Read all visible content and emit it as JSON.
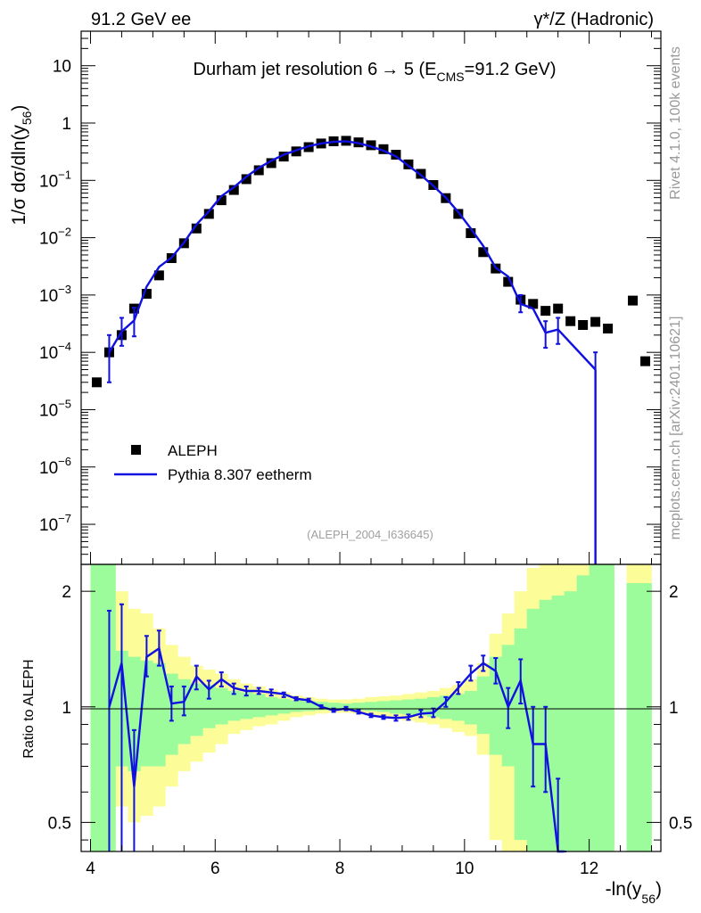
{
  "header": {
    "left": "91.2 GeV ee",
    "right": "γ*/Z (Hadronic)"
  },
  "side_labels": {
    "rivet": "Rivet 4.1.0,  100k events",
    "mcplots": "mcplots.cern.ch [arXiv:2401.10621]"
  },
  "chart_data": [
    {
      "type": "scatter",
      "panel": "main",
      "title": "Durham jet resolution 6 → 5 (E_CMS=91.2 GeV)",
      "title_main": "Durham jet resolution 6",
      "title_arrow": "→",
      "title_rest": " 5 (E",
      "title_sub": "CMS",
      "title_end": "=91.2 GeV)",
      "ylabel_prefix": "1/σ  dσ/dln(y",
      "ylabel_sub": "56",
      "ylabel_suffix": ")",
      "xlabel_prefix": "-ln(y",
      "xlabel_sub": "56",
      "xlabel_suffix": ")",
      "xscale": "linear",
      "yscale": "log",
      "xlim": [
        3.85,
        13.15
      ],
      "ylim": [
        2e-08,
        40
      ],
      "yticks": [
        {
          "v": 1e-07,
          "base": "10",
          "exp": "−7"
        },
        {
          "v": 1e-06,
          "base": "10",
          "exp": "−6"
        },
        {
          "v": 1e-05,
          "base": "10",
          "exp": "−5"
        },
        {
          "v": 0.0001,
          "base": "10",
          "exp": "−4"
        },
        {
          "v": 0.001,
          "base": "10",
          "exp": "−3"
        },
        {
          "v": 0.01,
          "base": "10",
          "exp": "−2"
        },
        {
          "v": 0.1,
          "base": "10",
          "exp": "−1"
        },
        {
          "v": 1,
          "base": "1",
          "exp": ""
        },
        {
          "v": 10,
          "base": "10",
          "exp": ""
        }
      ],
      "watermark": "(ALEPH_2004_I636645)",
      "legend_position": "lower-left",
      "series": [
        {
          "name": "ALEPH",
          "style": "square-marker",
          "color": "#000000",
          "points": [
            [
              4.1,
              3e-05
            ],
            [
              4.3,
              0.0001
            ],
            [
              4.5,
              0.0002
            ],
            [
              4.7,
              0.00058
            ],
            [
              4.9,
              0.00105
            ],
            [
              5.1,
              0.0022
            ],
            [
              5.3,
              0.0044
            ],
            [
              5.5,
              0.008
            ],
            [
              5.7,
              0.0145
            ],
            [
              5.9,
              0.026
            ],
            [
              6.1,
              0.045
            ],
            [
              6.3,
              0.068
            ],
            [
              6.5,
              0.105
            ],
            [
              6.7,
              0.15
            ],
            [
              6.9,
              0.2
            ],
            [
              7.1,
              0.26
            ],
            [
              7.3,
              0.32
            ],
            [
              7.5,
              0.38
            ],
            [
              7.7,
              0.44
            ],
            [
              7.9,
              0.48
            ],
            [
              8.1,
              0.49
            ],
            [
              8.3,
              0.46
            ],
            [
              8.5,
              0.41
            ],
            [
              8.7,
              0.35
            ],
            [
              8.9,
              0.28
            ],
            [
              9.1,
              0.19
            ],
            [
              9.3,
              0.13
            ],
            [
              9.5,
              0.083
            ],
            [
              9.7,
              0.049
            ],
            [
              9.9,
              0.026
            ],
            [
              10.1,
              0.012
            ],
            [
              10.3,
              0.0056
            ],
            [
              10.5,
              0.0029
            ],
            [
              10.7,
              0.0017
            ],
            [
              10.9,
              0.00083
            ],
            [
              11.1,
              0.0007
            ],
            [
              11.3,
              0.00053
            ],
            [
              11.5,
              0.00058
            ],
            [
              11.7,
              0.00035
            ],
            [
              11.9,
              0.0003
            ],
            [
              12.1,
              0.00034
            ],
            [
              12.3,
              0.00026
            ],
            [
              12.7,
              0.0008
            ],
            [
              12.9,
              7e-05
            ]
          ]
        },
        {
          "name": "Pythia 8.307 eetherm",
          "style": "line",
          "color": "#1010e0",
          "points": [
            [
              4.3,
              0.0001
            ],
            [
              4.5,
              0.00023
            ],
            [
              4.7,
              0.00036
            ],
            [
              4.9,
              0.0014
            ],
            [
              5.1,
              0.0031
            ],
            [
              5.3,
              0.0045
            ],
            [
              5.5,
              0.0082
            ],
            [
              5.7,
              0.017
            ],
            [
              5.9,
              0.029
            ],
            [
              6.1,
              0.053
            ],
            [
              6.3,
              0.076
            ],
            [
              6.5,
              0.116
            ],
            [
              6.7,
              0.165
            ],
            [
              6.9,
              0.22
            ],
            [
              7.1,
              0.28
            ],
            [
              7.3,
              0.334
            ],
            [
              7.5,
              0.395
            ],
            [
              7.7,
              0.44
            ],
            [
              7.9,
              0.47
            ],
            [
              8.1,
              0.48
            ],
            [
              8.3,
              0.445
            ],
            [
              8.5,
              0.39
            ],
            [
              8.7,
              0.33
            ],
            [
              8.9,
              0.262
            ],
            [
              9.1,
              0.18
            ],
            [
              9.3,
              0.124
            ],
            [
              9.5,
              0.08
            ],
            [
              9.7,
              0.05
            ],
            [
              9.9,
              0.028
            ],
            [
              10.1,
              0.0145
            ],
            [
              10.3,
              0.0072
            ],
            [
              10.5,
              0.003
            ],
            [
              10.7,
              0.0021
            ],
            [
              10.9,
              0.0007
            ],
            [
              11.1,
              0.00058
            ],
            [
              11.3,
              0.00022
            ],
            [
              11.5,
              0.00025
            ],
            [
              12.1,
              5e-05
            ]
          ],
          "error_bars": [
            [
              4.3,
              3e-05,
              0.0002
            ],
            [
              4.5,
              0.00013,
              0.0004
            ],
            [
              4.7,
              0.00019,
              0.0006
            ],
            [
              10.9,
              0.0005,
              0.001
            ],
            [
              11.3,
              0.00012,
              0.00035
            ],
            [
              11.5,
              0.00014,
              0.0004
            ],
            [
              12.1,
              1e-09,
              0.0001
            ]
          ]
        }
      ]
    },
    {
      "type": "scatter",
      "panel": "ratio",
      "ylabel": "Ratio to ALEPH",
      "xlim": [
        3.85,
        13.15
      ],
      "ylim": [
        0.42,
        2.35
      ],
      "yscale": "log",
      "xticks": [
        {
          "v": 4,
          "label": "4"
        },
        {
          "v": 6,
          "label": "6"
        },
        {
          "v": 8,
          "label": "8"
        },
        {
          "v": 10,
          "label": "10"
        },
        {
          "v": 12,
          "label": "12"
        }
      ],
      "yticks": [
        {
          "v": 0.5,
          "label": "0.5"
        },
        {
          "v": 1,
          "label": "1"
        },
        {
          "v": 2,
          "label": "2"
        }
      ],
      "bands": {
        "bin_edges": [
          4.0,
          4.2,
          4.4,
          4.6,
          4.8,
          5.0,
          5.2,
          5.4,
          5.6,
          5.8,
          6.0,
          6.2,
          6.4,
          6.6,
          6.8,
          7.0,
          7.2,
          7.4,
          7.6,
          7.8,
          8.0,
          8.2,
          8.4,
          8.6,
          8.8,
          9.0,
          9.2,
          9.4,
          9.6,
          9.8,
          10.0,
          10.2,
          10.4,
          10.6,
          10.8,
          11.0,
          11.2,
          11.4,
          11.6,
          11.8,
          12.0,
          12.2,
          12.4,
          12.6,
          12.8,
          13.0
        ],
        "stat_color": "#9cfc9c",
        "total_color": "#fcfc98",
        "stat": [
          [
            0.4,
            2.4
          ],
          [
            0.4,
            2.4
          ],
          [
            0.7,
            1.4
          ],
          [
            0.68,
            1.35
          ],
          [
            0.7,
            1.32
          ],
          [
            0.7,
            1.3
          ],
          [
            0.75,
            1.22
          ],
          [
            0.8,
            1.18
          ],
          [
            0.84,
            1.15
          ],
          [
            0.88,
            1.14
          ],
          [
            0.9,
            1.12
          ],
          [
            0.92,
            1.1
          ],
          [
            0.93,
            1.09
          ],
          [
            0.94,
            1.08
          ],
          [
            0.95,
            1.06
          ],
          [
            0.96,
            1.05
          ],
          [
            0.97,
            1.04
          ],
          [
            0.975,
            1.035
          ],
          [
            0.98,
            1.03
          ],
          [
            0.985,
            1.025
          ],
          [
            0.985,
            1.02
          ],
          [
            0.98,
            1.025
          ],
          [
            0.975,
            1.03
          ],
          [
            0.97,
            1.035
          ],
          [
            0.96,
            1.04
          ],
          [
            0.955,
            1.045
          ],
          [
            0.95,
            1.05
          ],
          [
            0.94,
            1.06
          ],
          [
            0.93,
            1.07
          ],
          [
            0.92,
            1.08
          ],
          [
            0.9,
            1.1
          ],
          [
            0.85,
            1.2
          ],
          [
            0.75,
            1.35
          ],
          [
            0.7,
            1.45
          ],
          [
            0.45,
            1.6
          ],
          [
            0.4,
            1.8
          ],
          [
            0.4,
            1.9
          ],
          [
            0.4,
            1.95
          ],
          [
            0.4,
            2.0
          ],
          [
            0.4,
            2.2
          ],
          [
            0.4,
            2.4
          ],
          [
            0.4,
            2.4
          ],
          null,
          [
            0.4,
            2.1
          ],
          [
            0.4,
            2.1
          ]
        ],
        "total": [
          [
            0.4,
            2.4
          ],
          [
            0.4,
            2.4
          ],
          [
            0.55,
            2.0
          ],
          [
            0.5,
            1.8
          ],
          [
            0.52,
            1.75
          ],
          [
            0.55,
            1.6
          ],
          [
            0.62,
            1.45
          ],
          [
            0.68,
            1.35
          ],
          [
            0.72,
            1.28
          ],
          [
            0.76,
            1.25
          ],
          [
            0.8,
            1.22
          ],
          [
            0.85,
            1.18
          ],
          [
            0.87,
            1.15
          ],
          [
            0.89,
            1.13
          ],
          [
            0.9,
            1.11
          ],
          [
            0.92,
            1.09
          ],
          [
            0.94,
            1.07
          ],
          [
            0.95,
            1.06
          ],
          [
            0.96,
            1.05
          ],
          [
            0.965,
            1.045
          ],
          [
            0.965,
            1.045
          ],
          [
            0.96,
            1.05
          ],
          [
            0.95,
            1.06
          ],
          [
            0.94,
            1.065
          ],
          [
            0.93,
            1.07
          ],
          [
            0.92,
            1.08
          ],
          [
            0.91,
            1.09
          ],
          [
            0.9,
            1.1
          ],
          [
            0.88,
            1.12
          ],
          [
            0.86,
            1.14
          ],
          [
            0.84,
            1.18
          ],
          [
            0.75,
            1.3
          ],
          [
            0.45,
            1.55
          ],
          [
            0.4,
            1.75
          ],
          [
            0.4,
            2.0
          ],
          [
            0.4,
            2.3
          ],
          [
            0.4,
            2.4
          ],
          [
            0.4,
            2.4
          ],
          [
            0.4,
            2.4
          ],
          [
            0.4,
            2.4
          ],
          [
            0.4,
            2.4
          ],
          [
            0.4,
            2.4
          ],
          null,
          [
            0.4,
            2.4
          ],
          [
            0.4,
            2.4
          ]
        ]
      },
      "series": [
        {
          "name": "Pythia 8.307 eetherm / ALEPH",
          "color": "#1010e0",
          "points": [
            [
              4.3,
              1.0,
              0.4,
              1.78
            ],
            [
              4.5,
              1.3,
              0.4,
              1.85
            ],
            [
              4.7,
              0.62,
              0.4,
              0.87
            ],
            [
              4.9,
              1.35,
              1.2,
              1.53
            ],
            [
              5.1,
              1.42,
              1.28,
              1.58
            ],
            [
              5.3,
              1.02,
              0.92,
              1.13
            ],
            [
              5.5,
              1.03,
              0.95,
              1.13
            ],
            [
              5.7,
              1.2,
              1.11,
              1.28
            ],
            [
              5.9,
              1.11,
              1.05,
              1.17
            ],
            [
              6.1,
              1.18,
              1.13,
              1.23
            ],
            [
              6.3,
              1.12,
              1.08,
              1.15
            ],
            [
              6.5,
              1.1,
              1.07,
              1.13
            ],
            [
              6.7,
              1.1,
              1.08,
              1.12
            ],
            [
              6.9,
              1.09,
              1.07,
              1.11
            ],
            [
              7.1,
              1.08,
              1.06,
              1.09
            ],
            [
              7.3,
              1.05,
              1.04,
              1.06
            ],
            [
              7.5,
              1.04,
              1.03,
              1.05
            ],
            [
              7.7,
              1.0,
              0.99,
              1.01
            ],
            [
              7.9,
              0.98,
              0.97,
              0.99
            ],
            [
              8.1,
              0.99,
              0.98,
              1.0
            ],
            [
              8.3,
              0.97,
              0.96,
              0.98
            ],
            [
              8.5,
              0.95,
              0.94,
              0.96
            ],
            [
              8.7,
              0.94,
              0.93,
              0.95
            ],
            [
              8.9,
              0.935,
              0.92,
              0.95
            ],
            [
              9.1,
              0.94,
              0.925,
              0.955
            ],
            [
              9.3,
              0.96,
              0.94,
              0.98
            ],
            [
              9.5,
              0.965,
              0.94,
              0.99
            ],
            [
              9.7,
              1.03,
              1.0,
              1.06
            ],
            [
              9.9,
              1.12,
              1.08,
              1.16
            ],
            [
              10.1,
              1.22,
              1.17,
              1.28
            ],
            [
              10.3,
              1.3,
              1.24,
              1.36
            ],
            [
              10.5,
              1.24,
              1.15,
              1.34
            ],
            [
              10.7,
              1.0,
              0.88,
              1.12
            ],
            [
              10.9,
              1.17,
              1.02,
              1.33
            ],
            [
              11.1,
              0.8,
              0.62,
              1.0
            ],
            [
              11.3,
              0.8,
              0.6,
              1.0
            ],
            [
              11.5,
              0.4,
              0.4,
              0.65
            ],
            [
              11.6,
              0.38,
              0.38,
              0.4
            ]
          ]
        }
      ]
    }
  ]
}
